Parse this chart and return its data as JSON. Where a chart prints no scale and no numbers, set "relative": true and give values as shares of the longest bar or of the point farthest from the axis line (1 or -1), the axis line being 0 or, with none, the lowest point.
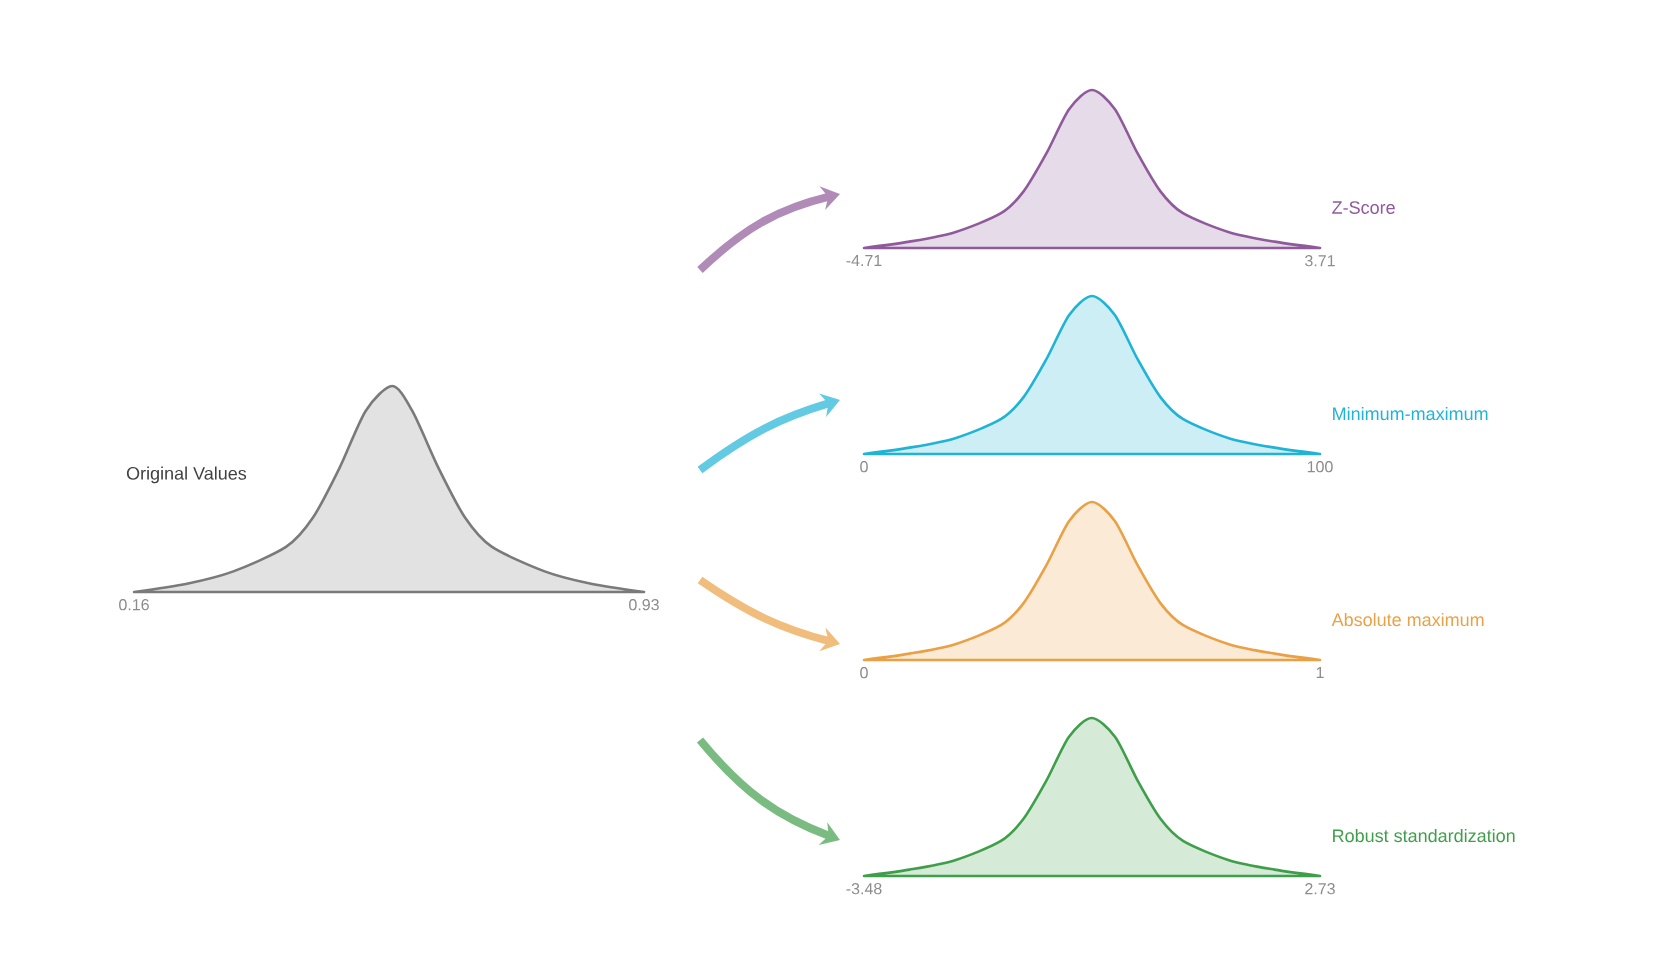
{
  "chart_data": [
    {
      "type": "area",
      "relative": true,
      "title": "Original Values",
      "color": "#7a7a7a",
      "xlim": [
        0.16,
        0.93
      ],
      "xticks": [
        0.16,
        0.93
      ],
      "x": [
        0.16,
        0.24,
        0.31,
        0.39,
        0.43,
        0.47,
        0.51,
        0.55,
        0.58,
        0.62,
        0.66,
        0.7,
        0.78,
        0.85,
        0.93
      ],
      "values": [
        0,
        0.04,
        0.1,
        0.22,
        0.36,
        0.6,
        0.88,
        1,
        0.88,
        0.6,
        0.36,
        0.22,
        0.1,
        0.04,
        0
      ]
    },
    {
      "type": "area",
      "relative": true,
      "title": "Z-Score",
      "color": "#8e5a9a",
      "xlim": [
        -4.71,
        3.71
      ],
      "xticks": [
        -4.71,
        3.71
      ],
      "x": [
        -4.71,
        -3.87,
        -3.03,
        -2.18,
        -1.76,
        -1.34,
        -0.92,
        -0.5,
        -0.08,
        0.34,
        0.76,
        1.18,
        2.03,
        2.87,
        3.71
      ],
      "values": [
        0,
        0.04,
        0.1,
        0.22,
        0.36,
        0.6,
        0.88,
        1,
        0.88,
        0.6,
        0.36,
        0.22,
        0.1,
        0.04,
        0
      ]
    },
    {
      "type": "area",
      "relative": true,
      "title": "Minimum-maximum",
      "color": "#1fb3d6",
      "xlim": [
        0,
        100
      ],
      "xticks": [
        0,
        100
      ],
      "x": [
        0,
        10,
        20,
        30,
        35,
        40,
        45,
        50,
        55,
        60,
        65,
        70,
        80,
        90,
        100
      ],
      "values": [
        0,
        0.04,
        0.1,
        0.22,
        0.36,
        0.6,
        0.88,
        1,
        0.88,
        0.6,
        0.36,
        0.22,
        0.1,
        0.04,
        0
      ]
    },
    {
      "type": "area",
      "relative": true,
      "title": "Absolute maximum",
      "color": "#eaa045",
      "xlim": [
        0,
        1
      ],
      "xticks": [
        0,
        1
      ],
      "x": [
        0,
        0.1,
        0.2,
        0.3,
        0.35,
        0.4,
        0.45,
        0.5,
        0.55,
        0.6,
        0.65,
        0.7,
        0.8,
        0.9,
        1
      ],
      "values": [
        0,
        0.04,
        0.1,
        0.22,
        0.36,
        0.6,
        0.88,
        1,
        0.88,
        0.6,
        0.36,
        0.22,
        0.1,
        0.04,
        0
      ]
    },
    {
      "type": "area",
      "relative": true,
      "title": "Robust standardization",
      "color": "#3f9e4a",
      "xlim": [
        -3.48,
        2.73
      ],
      "xticks": [
        -3.48,
        2.73
      ],
      "x": [
        -3.48,
        -2.86,
        -2.24,
        -1.62,
        -1.31,
        -1.0,
        -0.69,
        -0.38,
        -0.06,
        0.25,
        0.56,
        0.87,
        1.49,
        2.11,
        2.73
      ],
      "values": [
        0,
        0.04,
        0.1,
        0.22,
        0.36,
        0.6,
        0.88,
        1,
        0.88,
        0.6,
        0.36,
        0.22,
        0.1,
        0.04,
        0
      ]
    }
  ]
}
